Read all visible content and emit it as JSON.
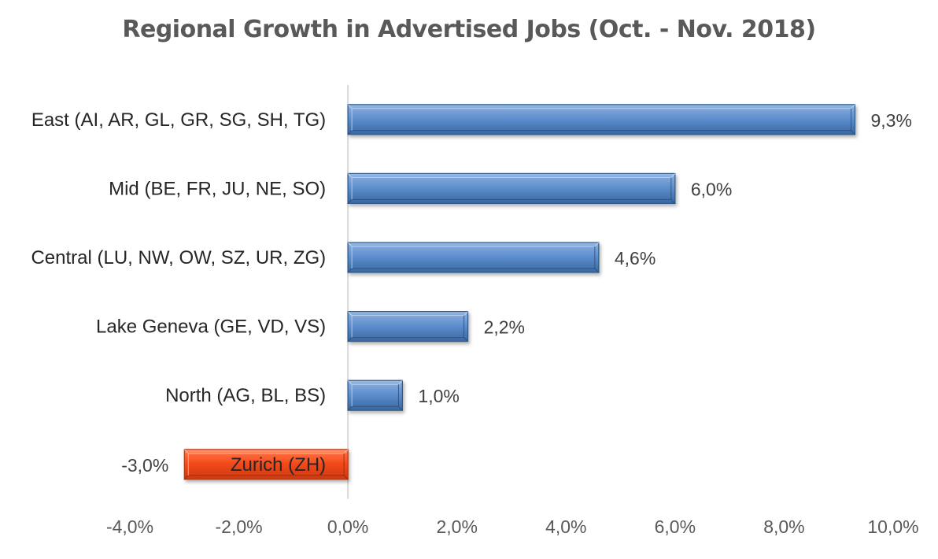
{
  "chart_data": {
    "type": "bar",
    "orientation": "horizontal",
    "title": "Regional Growth in Advertised Jobs (Oct. - Nov. 2018)",
    "xlabel": "",
    "ylabel": "",
    "xlim": [
      -4.0,
      10.0
    ],
    "x_ticks": [
      -4.0,
      -2.0,
      0.0,
      2.0,
      4.0,
      6.0,
      8.0,
      10.0
    ],
    "x_tick_labels": [
      "-4,0%",
      "-2,0%",
      "0,0%",
      "2,0%",
      "4,0%",
      "6,0%",
      "8,0%",
      "10,0%"
    ],
    "grid": false,
    "legend": "none",
    "categories": [
      "East (AI, AR, GL, GR, SG, SH, TG)",
      "Mid (BE, FR, JU, NE, SO)",
      "Central (LU, NW, OW, SZ, UR, ZG)",
      "Lake Geneva (GE, VD, VS)",
      "North (AG, BL, BS)",
      "Zurich (ZH)"
    ],
    "values": [
      9.3,
      6.0,
      4.6,
      2.2,
      1.0,
      -3.0
    ],
    "data_labels": [
      "9,3%",
      "6,0%",
      "4,6%",
      "2,2%",
      "1,0%",
      "-3,0%"
    ],
    "colors": {
      "positive": "#4f81bd",
      "negative": "#f24a1d",
      "axis": "#d9d9d9",
      "text": "#404040",
      "title": "#595959"
    }
  }
}
